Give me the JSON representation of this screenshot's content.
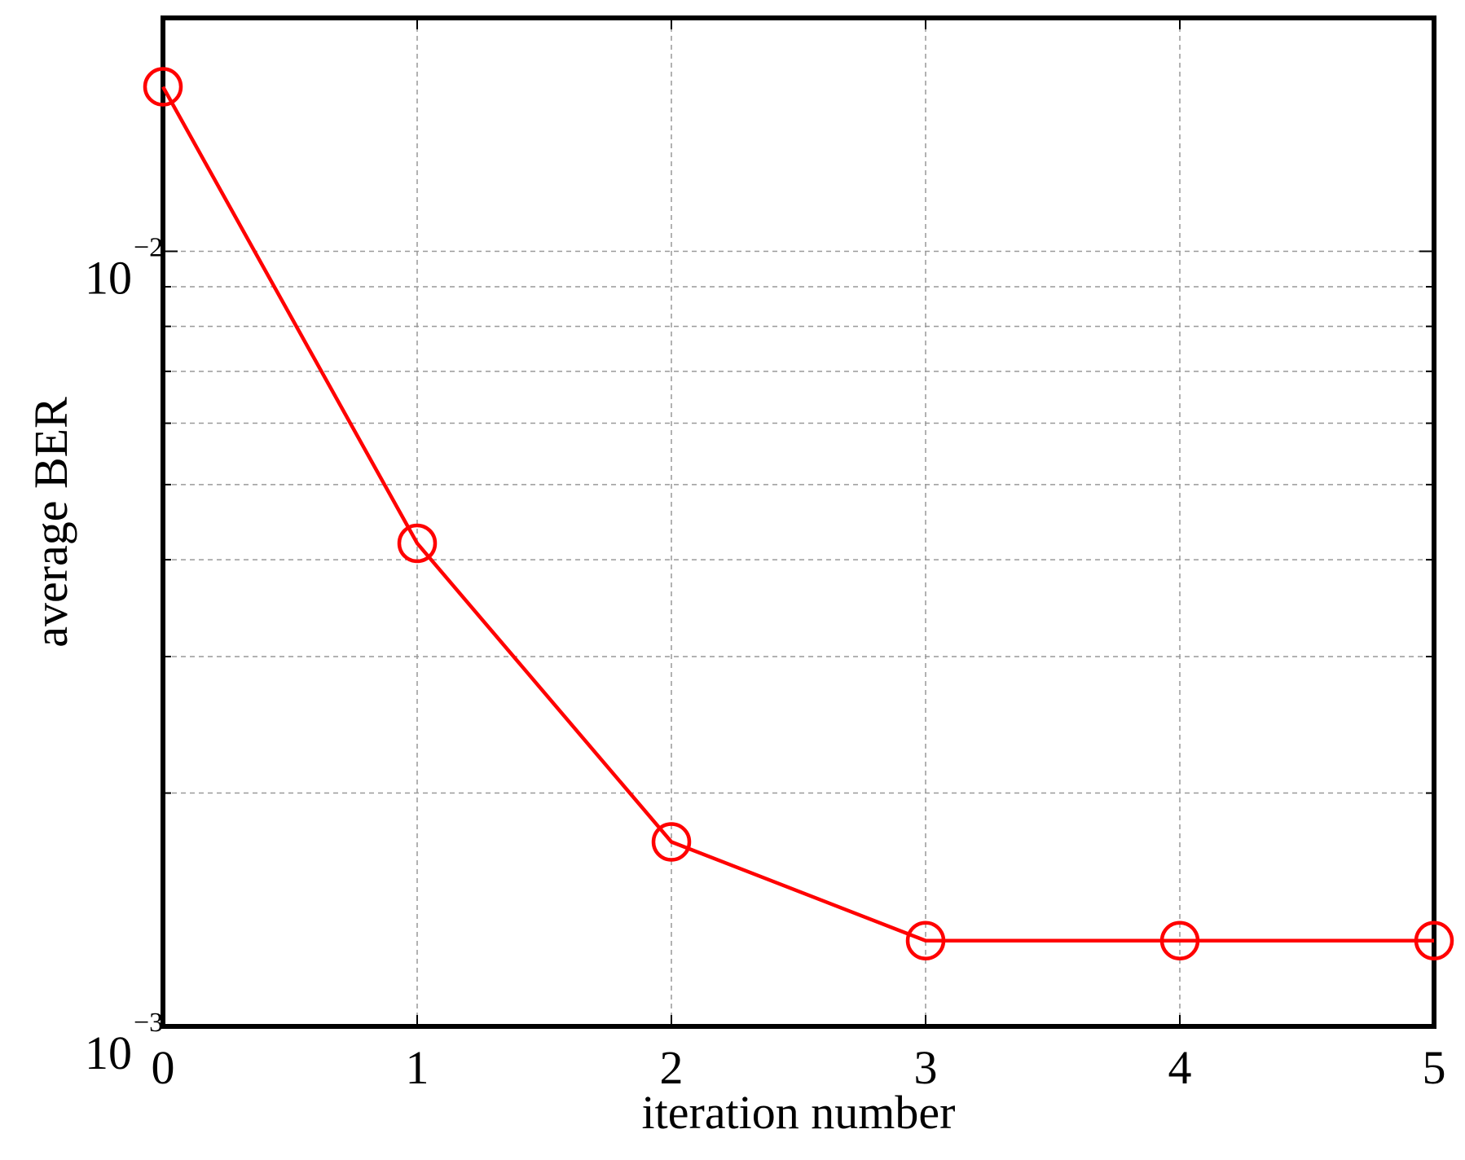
{
  "chart_data": {
    "type": "line",
    "xlabel": "iteration number",
    "ylabel": "average BER",
    "x": [
      0,
      1,
      2,
      3,
      4,
      5
    ],
    "series": [
      {
        "values": [
          0.0163,
          0.0042,
          0.00173,
          0.00129,
          0.00129,
          0.00129
        ],
        "color": "#ff0000",
        "marker": "circle"
      }
    ],
    "xlim": [
      0,
      5
    ],
    "ylim": [
      0.001,
      0.02
    ],
    "yscale": "log",
    "x_ticks": [
      "0",
      "1",
      "2",
      "3",
      "4",
      "5"
    ],
    "y_ticks": [
      {
        "base": "10",
        "exponent": "−3",
        "value": 0.001
      },
      {
        "base": "10",
        "exponent": "−2",
        "value": 0.01
      }
    ],
    "y_minor_ticks": [
      0.002,
      0.003,
      0.004,
      0.005,
      0.006,
      0.007,
      0.008,
      0.009
    ],
    "grid": true,
    "grid_color": "#999999",
    "axes_color": "#000000"
  }
}
